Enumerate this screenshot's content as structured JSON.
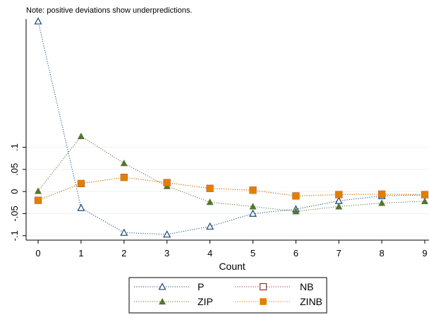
{
  "chart_data": {
    "type": "line",
    "note": "Note: positive deviations show underpredictions.",
    "xlabel": "Count",
    "ylabel": "",
    "x": [
      0,
      1,
      2,
      3,
      4,
      5,
      6,
      7,
      8,
      9
    ],
    "xticks": [
      "0",
      "1",
      "2",
      "3",
      "4",
      "5",
      "6",
      "7",
      "8",
      "9"
    ],
    "ytick_values": [
      -0.1,
      -0.05,
      0,
      0.05,
      0.1
    ],
    "ytick_labels": [
      "-.1",
      "-.05",
      "0",
      ".05",
      ".1"
    ],
    "xlim": [
      0,
      9
    ],
    "ylim": [
      -0.11,
      0.39
    ],
    "grid": "horizontal",
    "legend_position": "bottom",
    "series": [
      {
        "name": "P",
        "marker": "triangle-hollow",
        "color": "#1a476f",
        "values": [
          0.385,
          -0.037,
          -0.093,
          -0.097,
          -0.079,
          -0.05,
          -0.04,
          -0.021,
          -0.01,
          -0.008
        ]
      },
      {
        "name": "NB",
        "marker": "square-hollow",
        "color": "#90353b",
        "values": [
          -0.02,
          0.018,
          0.032,
          0.02,
          0.007,
          0.003,
          -0.01,
          -0.007,
          -0.006,
          -0.007
        ]
      },
      {
        "name": "ZIP",
        "marker": "triangle-filled",
        "color": "#55752f",
        "values": [
          0.001,
          0.125,
          0.064,
          0.012,
          -0.024,
          -0.034,
          -0.045,
          -0.034,
          -0.026,
          -0.022
        ]
      },
      {
        "name": "ZINB",
        "marker": "square-filled",
        "color": "#e37e00",
        "values": [
          -0.02,
          0.018,
          0.032,
          0.02,
          0.007,
          0.003,
          -0.01,
          -0.007,
          -0.006,
          -0.007
        ]
      }
    ]
  }
}
